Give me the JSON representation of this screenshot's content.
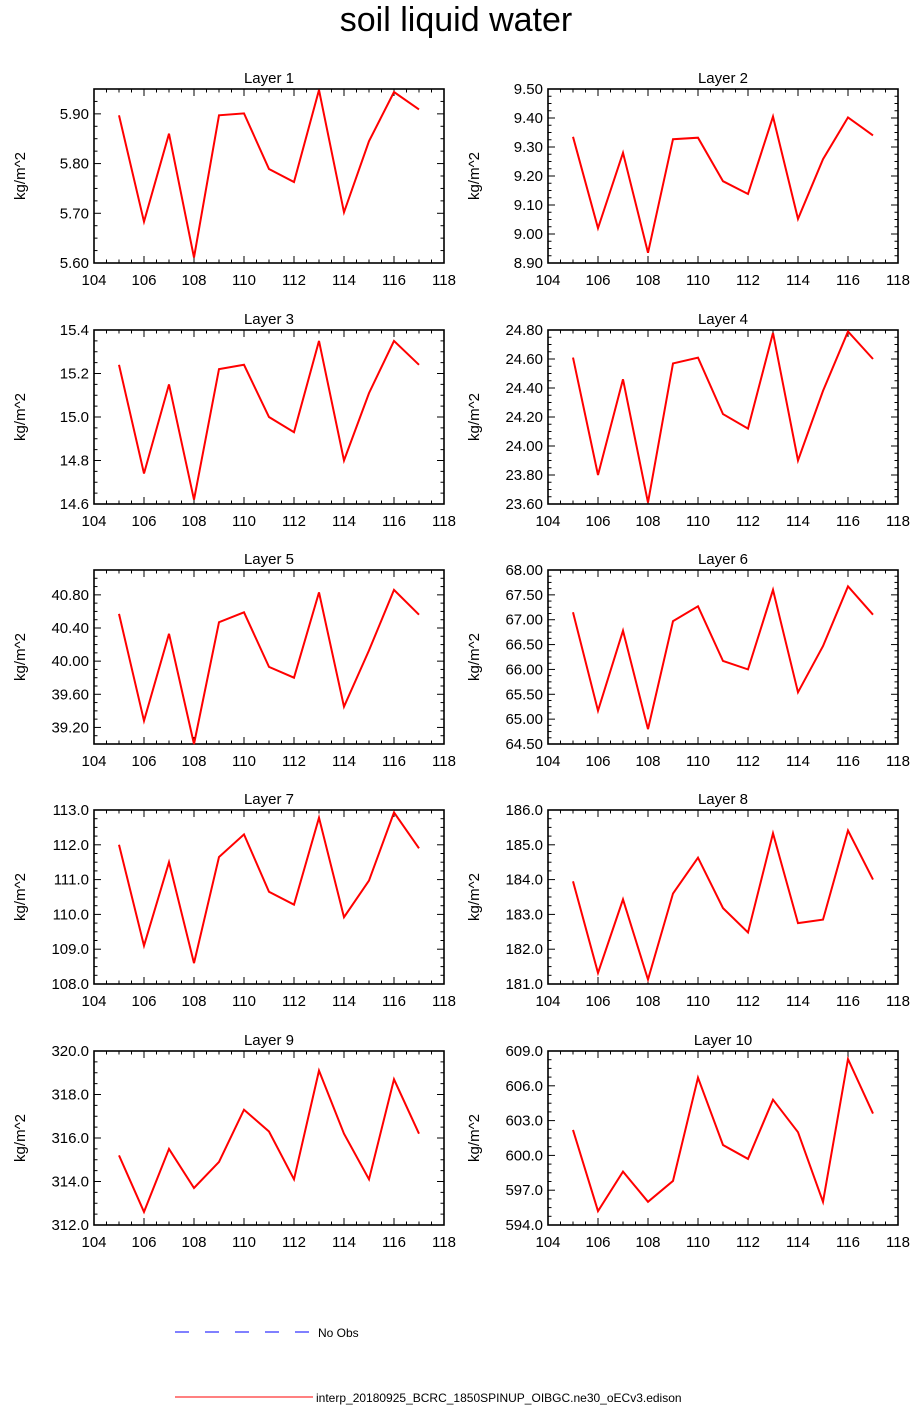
{
  "title": "soil liquid water",
  "legend": {
    "obs_label": "No Obs",
    "model_label": "interp_20180925_BCRC_1850SPINUP_OIBGC.ne30_oECv3.edison",
    "obs_color": "#0000ff",
    "model_color": "#ff0000"
  },
  "chart_data": [
    {
      "type": "line",
      "title": "Layer 1",
      "ylabel": "kg/m^2",
      "xlim": [
        104,
        118
      ],
      "xticks": [
        104,
        106,
        108,
        110,
        112,
        114,
        116,
        118
      ],
      "ylim": [
        5.6,
        5.95
      ],
      "yticks": [
        5.6,
        5.7,
        5.8,
        5.9
      ],
      "ydecimals": 2,
      "x": [
        105,
        106,
        107,
        108,
        109,
        110,
        111,
        112,
        113,
        114,
        115,
        116,
        117
      ],
      "series": [
        {
          "values": [
            5.897,
            5.683,
            5.86,
            5.611,
            5.897,
            5.901,
            5.789,
            5.763,
            5.948,
            5.702,
            5.845,
            5.944,
            5.909
          ]
        }
      ]
    },
    {
      "type": "line",
      "title": "Layer 2",
      "ylabel": "kg/m^2",
      "xlim": [
        104,
        118
      ],
      "xticks": [
        104,
        106,
        108,
        110,
        112,
        114,
        116,
        118
      ],
      "ylim": [
        8.9,
        9.5
      ],
      "yticks": [
        8.9,
        9.0,
        9.1,
        9.2,
        9.3,
        9.4,
        9.5
      ],
      "ydecimals": 2,
      "x": [
        105,
        106,
        107,
        108,
        109,
        110,
        111,
        112,
        113,
        114,
        115,
        116,
        117
      ],
      "series": [
        {
          "values": [
            9.335,
            9.02,
            9.28,
            8.935,
            9.327,
            9.332,
            9.182,
            9.138,
            9.405,
            9.052,
            9.258,
            9.402,
            9.34
          ]
        }
      ]
    },
    {
      "type": "line",
      "title": "Layer 3",
      "ylabel": "kg/m^2",
      "xlim": [
        104,
        118
      ],
      "xticks": [
        104,
        106,
        108,
        110,
        112,
        114,
        116,
        118
      ],
      "ylim": [
        14.6,
        15.4
      ],
      "yticks": [
        14.6,
        14.8,
        15.0,
        15.2,
        15.4
      ],
      "ydecimals": 1,
      "x": [
        105,
        106,
        107,
        108,
        109,
        110,
        111,
        112,
        113,
        114,
        115,
        116,
        117
      ],
      "series": [
        {
          "values": [
            15.24,
            14.74,
            15.15,
            14.62,
            15.22,
            15.24,
            15.0,
            14.93,
            15.35,
            14.8,
            15.11,
            15.35,
            15.24
          ]
        }
      ]
    },
    {
      "type": "line",
      "title": "Layer 4",
      "ylabel": "kg/m^2",
      "xlim": [
        104,
        118
      ],
      "xticks": [
        104,
        106,
        108,
        110,
        112,
        114,
        116,
        118
      ],
      "ylim": [
        23.6,
        24.8
      ],
      "yticks": [
        23.6,
        23.8,
        24.0,
        24.2,
        24.4,
        24.6,
        24.8
      ],
      "ydecimals": 2,
      "x": [
        105,
        106,
        107,
        108,
        109,
        110,
        111,
        112,
        113,
        114,
        115,
        116,
        117
      ],
      "series": [
        {
          "values": [
            24.61,
            23.8,
            24.46,
            23.61,
            24.57,
            24.61,
            24.22,
            24.12,
            24.78,
            23.9,
            24.38,
            24.79,
            24.6
          ]
        }
      ]
    },
    {
      "type": "line",
      "title": "Layer 5",
      "ylabel": "kg/m^2",
      "xlim": [
        104,
        118
      ],
      "xticks": [
        104,
        106,
        108,
        110,
        112,
        114,
        116,
        118
      ],
      "ylim": [
        39.0,
        41.1
      ],
      "yticks": [
        39.2,
        39.6,
        40.0,
        40.4,
        40.8
      ],
      "ydecimals": 2,
      "x": [
        105,
        106,
        107,
        108,
        109,
        110,
        111,
        112,
        113,
        114,
        115,
        116,
        117
      ],
      "series": [
        {
          "values": [
            40.57,
            39.28,
            40.33,
            39.0,
            40.47,
            40.59,
            39.93,
            39.8,
            40.83,
            39.45,
            40.13,
            40.86,
            40.56
          ]
        }
      ]
    },
    {
      "type": "line",
      "title": "Layer 6",
      "ylabel": "kg/m^2",
      "xlim": [
        104,
        118
      ],
      "xticks": [
        104,
        106,
        108,
        110,
        112,
        114,
        116,
        118
      ],
      "ylim": [
        64.5,
        68.0
      ],
      "yticks": [
        64.5,
        65.0,
        65.5,
        66.0,
        66.5,
        67.0,
        67.5,
        68.0
      ],
      "ydecimals": 2,
      "x": [
        105,
        106,
        107,
        108,
        109,
        110,
        111,
        112,
        113,
        114,
        115,
        116,
        117
      ],
      "series": [
        {
          "values": [
            67.15,
            65.17,
            66.78,
            64.8,
            66.97,
            67.27,
            66.17,
            66.0,
            67.6,
            65.54,
            66.47,
            67.67,
            67.1
          ]
        }
      ]
    },
    {
      "type": "line",
      "title": "Layer 7",
      "ylabel": "kg/m^2",
      "xlim": [
        104,
        118
      ],
      "xticks": [
        104,
        106,
        108,
        110,
        112,
        114,
        116,
        118
      ],
      "ylim": [
        108.0,
        113.0
      ],
      "yticks": [
        108.0,
        109.0,
        110.0,
        111.0,
        112.0,
        113.0
      ],
      "ydecimals": 1,
      "x": [
        105,
        106,
        107,
        108,
        109,
        110,
        111,
        112,
        113,
        114,
        115,
        116,
        117
      ],
      "series": [
        {
          "values": [
            112.0,
            109.1,
            111.5,
            108.6,
            111.65,
            112.3,
            110.65,
            110.28,
            112.78,
            109.92,
            110.97,
            112.93,
            111.9
          ]
        }
      ]
    },
    {
      "type": "line",
      "title": "Layer 8",
      "ylabel": "kg/m^2",
      "xlim": [
        104,
        118
      ],
      "xticks": [
        104,
        106,
        108,
        110,
        112,
        114,
        116,
        118
      ],
      "ylim": [
        181.0,
        186.0
      ],
      "yticks": [
        181.0,
        182.0,
        183.0,
        184.0,
        185.0,
        186.0
      ],
      "ydecimals": 1,
      "x": [
        105,
        106,
        107,
        108,
        109,
        110,
        111,
        112,
        113,
        114,
        115,
        116,
        117
      ],
      "series": [
        {
          "values": [
            183.95,
            181.32,
            183.43,
            181.13,
            183.6,
            184.63,
            183.18,
            182.48,
            185.33,
            182.75,
            182.85,
            185.41,
            184.0
          ]
        }
      ]
    },
    {
      "type": "line",
      "title": "Layer 9",
      "ylabel": "kg/m^2",
      "xlim": [
        104,
        118
      ],
      "xticks": [
        104,
        106,
        108,
        110,
        112,
        114,
        116,
        118
      ],
      "ylim": [
        312.0,
        320.0
      ],
      "yticks": [
        312.0,
        314.0,
        316.0,
        318.0,
        320.0
      ],
      "ydecimals": 1,
      "x": [
        105,
        106,
        107,
        108,
        109,
        110,
        111,
        112,
        113,
        114,
        115,
        116,
        117
      ],
      "series": [
        {
          "values": [
            315.2,
            312.6,
            315.5,
            313.7,
            314.9,
            317.3,
            316.3,
            314.1,
            319.1,
            316.2,
            314.1,
            318.7,
            316.2
          ]
        }
      ]
    },
    {
      "type": "line",
      "title": "Layer 10",
      "ylabel": "kg/m^2",
      "xlim": [
        104,
        118
      ],
      "xticks": [
        104,
        106,
        108,
        110,
        112,
        114,
        116,
        118
      ],
      "ylim": [
        594.0,
        609.0
      ],
      "yticks": [
        594.0,
        597.0,
        600.0,
        603.0,
        606.0,
        609.0
      ],
      "ydecimals": 1,
      "x": [
        105,
        106,
        107,
        108,
        109,
        110,
        111,
        112,
        113,
        114,
        115,
        116,
        117
      ],
      "series": [
        {
          "values": [
            602.2,
            595.2,
            598.6,
            596.0,
            597.8,
            606.7,
            600.9,
            599.7,
            604.8,
            602.0,
            596.0,
            608.3,
            603.6
          ]
        }
      ]
    }
  ]
}
